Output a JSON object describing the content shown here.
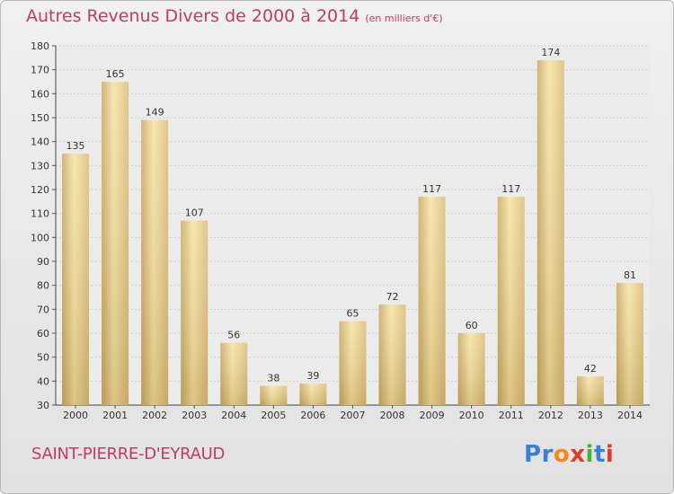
{
  "header": {
    "title": "Autres Revenus Divers de 2000 à 2014",
    "unit": "(en milliers d'€)"
  },
  "footer": {
    "place": "SAINT-PIERRE-D'EYRAUD",
    "logo": "Proxiti"
  },
  "colors": {
    "bar_light": "#f7e3a3",
    "bar_dark": "#c8a964",
    "title": "#c03a6a",
    "logo_letters": [
      "#3a7fd5",
      "#3a7fd5",
      "#f08a1c",
      "#e33a2a",
      "#4cae3a",
      "#3a7fd5",
      "#e33a2a"
    ]
  },
  "chart_data": {
    "type": "bar",
    "title": "Autres Revenus Divers de 2000 à 2014",
    "subtitle": "(en milliers d'€)",
    "categories": [
      "2000",
      "2001",
      "2002",
      "2003",
      "2004",
      "2005",
      "2006",
      "2007",
      "2008",
      "2009",
      "2010",
      "2011",
      "2012",
      "2013",
      "2014"
    ],
    "values": [
      135,
      165,
      149,
      107,
      56,
      38,
      39,
      65,
      72,
      117,
      60,
      117,
      174,
      42,
      81
    ],
    "ylim": [
      30,
      180
    ],
    "yticks": [
      30,
      40,
      50,
      60,
      70,
      80,
      90,
      100,
      110,
      120,
      130,
      140,
      150,
      160,
      170,
      180
    ],
    "grid": true,
    "legend": "none"
  }
}
